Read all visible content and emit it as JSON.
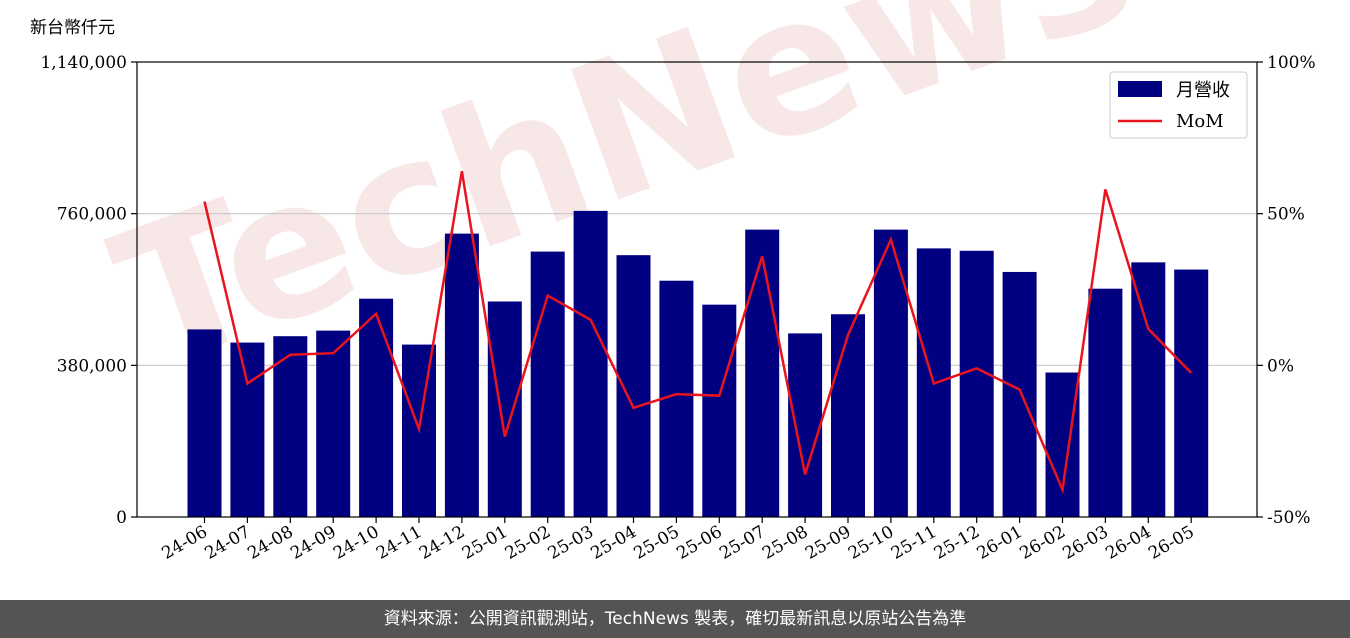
{
  "chart_data": {
    "type": "bar",
    "unit_label": "新台幣仟元",
    "categories": [
      "24-06",
      "24-07",
      "24-08",
      "24-09",
      "24-10",
      "24-11",
      "24-12",
      "25-01",
      "25-02",
      "25-03",
      "25-04",
      "25-05",
      "25-06",
      "25-07",
      "25-08",
      "25-09",
      "25-10",
      "25-11",
      "25-12",
      "26-01",
      "26-02",
      "26-03",
      "26-04",
      "26-05"
    ],
    "series": [
      {
        "name": "月營收",
        "type": "bar",
        "axis": "left",
        "color": "#000080",
        "values": [
          470000,
          437000,
          453000,
          467000,
          547000,
          432000,
          710000,
          540000,
          665000,
          767000,
          656000,
          592000,
          532000,
          720000,
          460000,
          508000,
          720000,
          673000,
          667000,
          614000,
          362000,
          572000,
          638000,
          620000
        ]
      },
      {
        "name": "MoM",
        "type": "line",
        "axis": "right",
        "color": "#e8141e",
        "values": [
          54,
          -6,
          3.5,
          4,
          17,
          -21,
          64,
          -23.5,
          23,
          15,
          -14,
          -9.5,
          -10,
          36,
          -36,
          10,
          41.5,
          -6,
          -1,
          -8,
          -41,
          58,
          12,
          -2.5
        ]
      }
    ],
    "y_left": {
      "min": 0,
      "max": 1140000,
      "ticks": [
        0,
        380000,
        760000,
        1140000
      ],
      "tick_labels": [
        "0",
        "380,000",
        "760,000",
        "1,140,000"
      ]
    },
    "y_right": {
      "min": -50,
      "max": 100,
      "ticks": [
        -50,
        0,
        50,
        100
      ],
      "tick_labels": [
        "-50%",
        "0%",
        "50%",
        "100%"
      ]
    },
    "grid": "horizontal",
    "legend": "top-right"
  },
  "watermark": "TechNews",
  "footer": "資料來源：公開資訊觀測站，TechNews 製表，確切最新訊息以原站公告為準"
}
